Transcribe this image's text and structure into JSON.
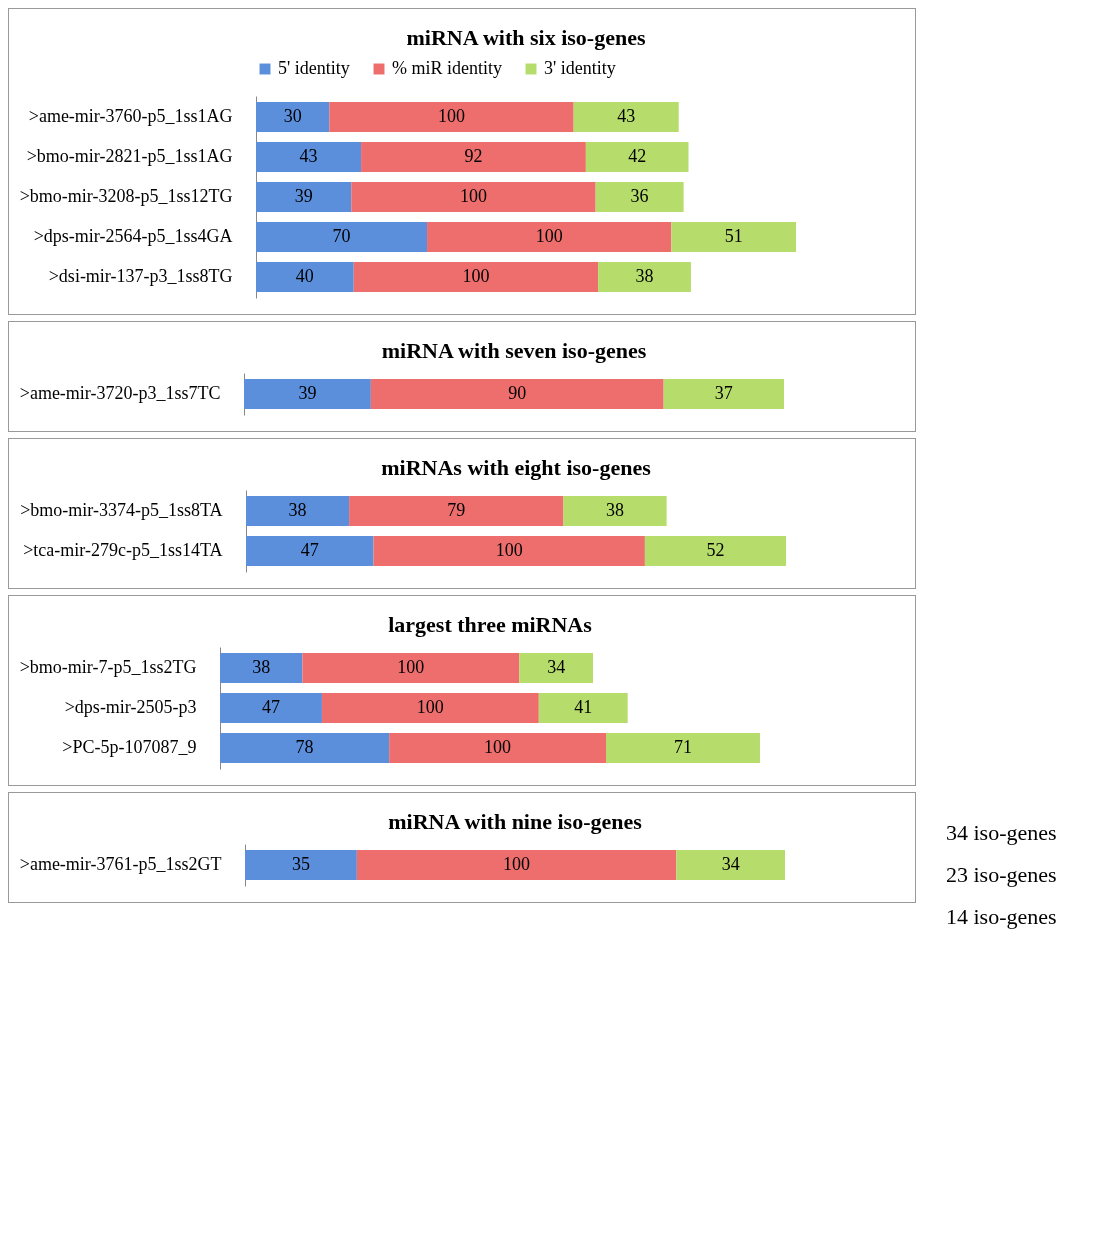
{
  "chart_data": [
    {
      "type": "bar",
      "orientation": "horizontal",
      "stacked": true,
      "data_labels": true,
      "tick_labels": "y",
      "legend": "top",
      "title": "miRNA with six iso-genes",
      "categories": [
        ">ame-mir-3760-p5_1ss1AG",
        ">bmo-mir-2821-p5_1ss1AG",
        ">bmo-mir-3208-p5_1ss12TG",
        ">dps-mir-2564-p5_1ss4GA",
        ">dsi-mir-137-p3_1ss8TG"
      ],
      "series": [
        {
          "name": "5' identity",
          "color": "#5b8fdc",
          "values": [
            30,
            43,
            39,
            70,
            40
          ]
        },
        {
          "name": "% miR identity",
          "color": "#ee6e6e",
          "values": [
            100,
            92,
            100,
            100,
            100
          ]
        },
        {
          "name": "3' identity",
          "color": "#b6dd6c",
          "values": [
            43,
            42,
            36,
            51,
            38
          ]
        }
      ]
    },
    {
      "type": "bar",
      "orientation": "horizontal",
      "stacked": true,
      "data_labels": true,
      "tick_labels": "y",
      "title": "miRNA with seven iso-genes",
      "categories": [
        ">ame-mir-3720-p3_1ss7TC"
      ],
      "series": [
        {
          "color": "#5b8fdc",
          "values": [
            39
          ]
        },
        {
          "color": "#ee6e6e",
          "values": [
            90
          ]
        },
        {
          "color": "#b6dd6c",
          "values": [
            37
          ]
        }
      ]
    },
    {
      "type": "bar",
      "orientation": "horizontal",
      "stacked": true,
      "data_labels": true,
      "tick_labels": "y",
      "title": "miRNAs with eight iso-genes",
      "categories": [
        ">bmo-mir-3374-p5_1ss8TA",
        ">tca-mir-279c-p5_1ss14TA"
      ],
      "series": [
        {
          "color": "#5b8fdc",
          "values": [
            38,
            47
          ]
        },
        {
          "color": "#ee6e6e",
          "values": [
            79,
            100
          ]
        },
        {
          "color": "#b6dd6c",
          "values": [
            38,
            52
          ]
        }
      ]
    },
    {
      "type": "bar",
      "orientation": "horizontal",
      "stacked": true,
      "data_labels": true,
      "tick_labels": "y",
      "title": "largest three miRNAs",
      "categories": [
        ">bmo-mir-7-p5_1ss2TG",
        ">dps-mir-2505-p3",
        ">PC-5p-107087_9"
      ],
      "series": [
        {
          "color": "#5b8fdc",
          "values": [
            38,
            47,
            78
          ]
        },
        {
          "color": "#ee6e6e",
          "values": [
            100,
            100,
            100
          ]
        },
        {
          "color": "#b6dd6c",
          "values": [
            34,
            41,
            71
          ]
        }
      ]
    },
    {
      "type": "bar",
      "orientation": "horizontal",
      "stacked": true,
      "data_labels": true,
      "tick_labels": "y",
      "title": "miRNA with nine iso-genes",
      "categories": [
        ">ame-mir-3761-p5_1ss2GT"
      ],
      "annotations": [
        "34 iso-genes",
        "23 iso-genes",
        "14 iso-genes"
      ],
      "series": [
        {
          "color": "#5b8fdc",
          "values": [
            35
          ]
        },
        {
          "color": "#ee6e6e",
          "values": [
            100
          ]
        },
        {
          "color": "#b6dd6c",
          "values": [
            34
          ]
        }
      ]
    }
  ]
}
